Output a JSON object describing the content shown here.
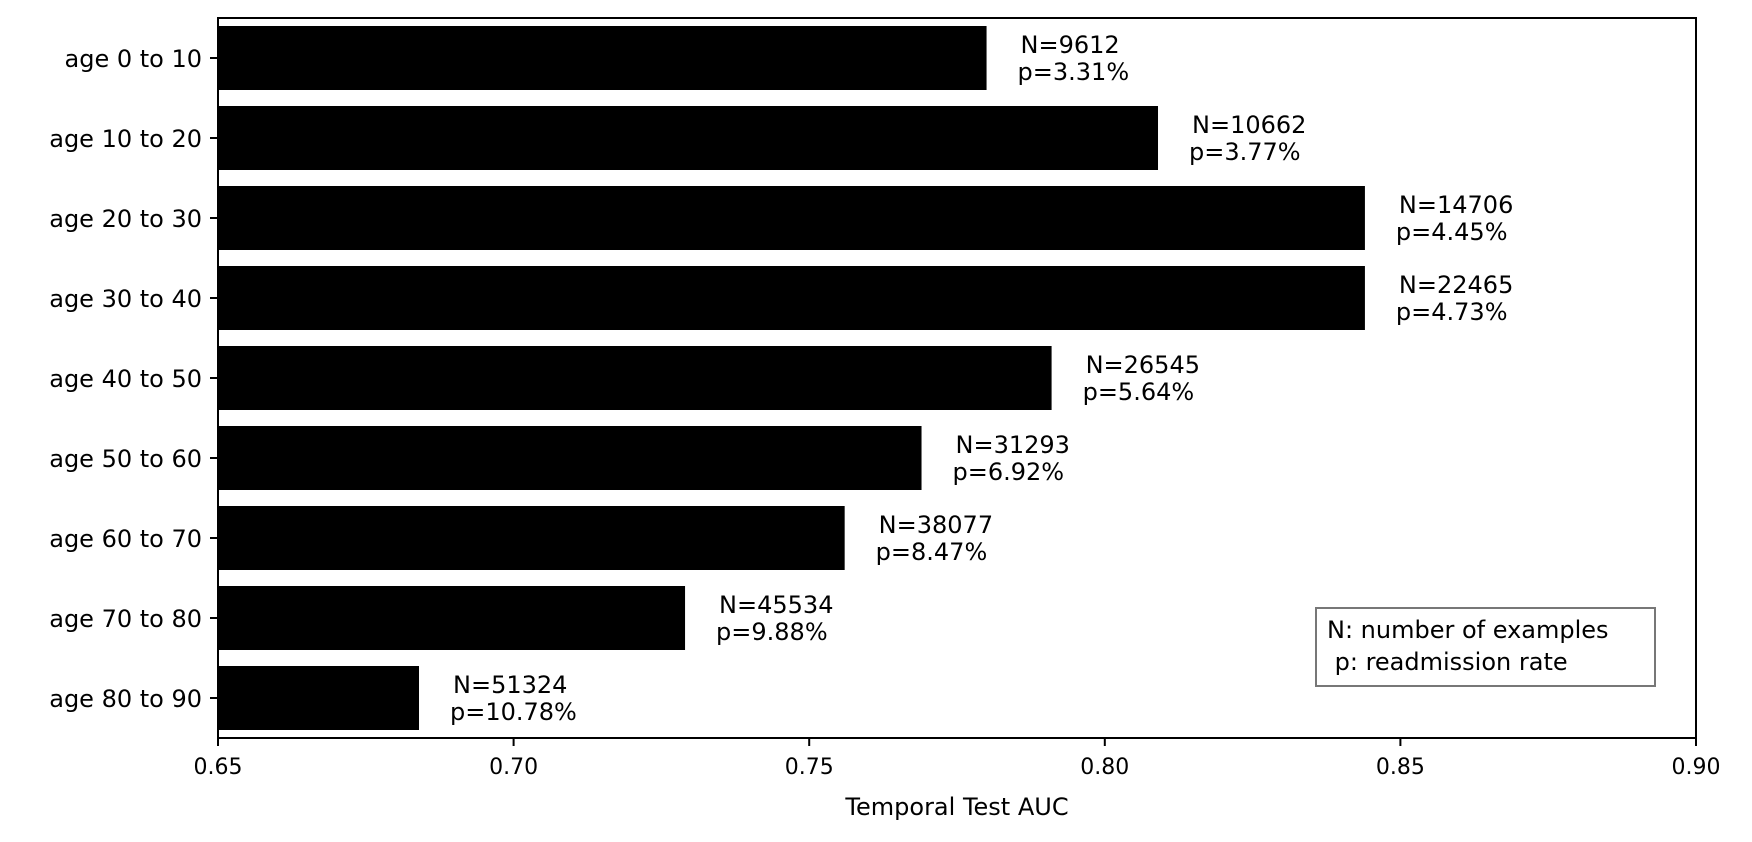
{
  "chart_data": {
    "type": "bar",
    "orientation": "horizontal",
    "categories": [
      "age 0 to 10",
      "age 10 to 20",
      "age 20 to 30",
      "age 30 to 40",
      "age 40 to 50",
      "age 50 to 60",
      "age 60 to 70",
      "age 70 to 80",
      "age 80 to 90"
    ],
    "values": [
      0.78,
      0.809,
      0.844,
      0.844,
      0.791,
      0.769,
      0.756,
      0.729,
      0.684
    ],
    "annotations": [
      {
        "n": "N=9612",
        "p": "p=3.31%"
      },
      {
        "n": "N=10662",
        "p": "p=3.77%"
      },
      {
        "n": "N=14706",
        "p": "p=4.45%"
      },
      {
        "n": "N=22465",
        "p": "p=4.73%"
      },
      {
        "n": "N=26545",
        "p": "p=5.64%"
      },
      {
        "n": "N=31293",
        "p": "p=6.92%"
      },
      {
        "n": "N=38077",
        "p": "p=8.47%"
      },
      {
        "n": "N=45534",
        "p": "p=9.88%"
      },
      {
        "n": "N=51324",
        "p": "p=10.78%"
      }
    ],
    "xlabel": "Temporal Test AUC",
    "xlim": [
      0.65,
      0.9
    ],
    "xticks": [
      "0.65",
      "0.70",
      "0.75",
      "0.80",
      "0.85",
      "0.90"
    ],
    "bar_color": "#000000",
    "grid": false,
    "legend_placement": "lower-right",
    "legend": [
      "N: number of examples",
      " p: readmission rate"
    ]
  }
}
